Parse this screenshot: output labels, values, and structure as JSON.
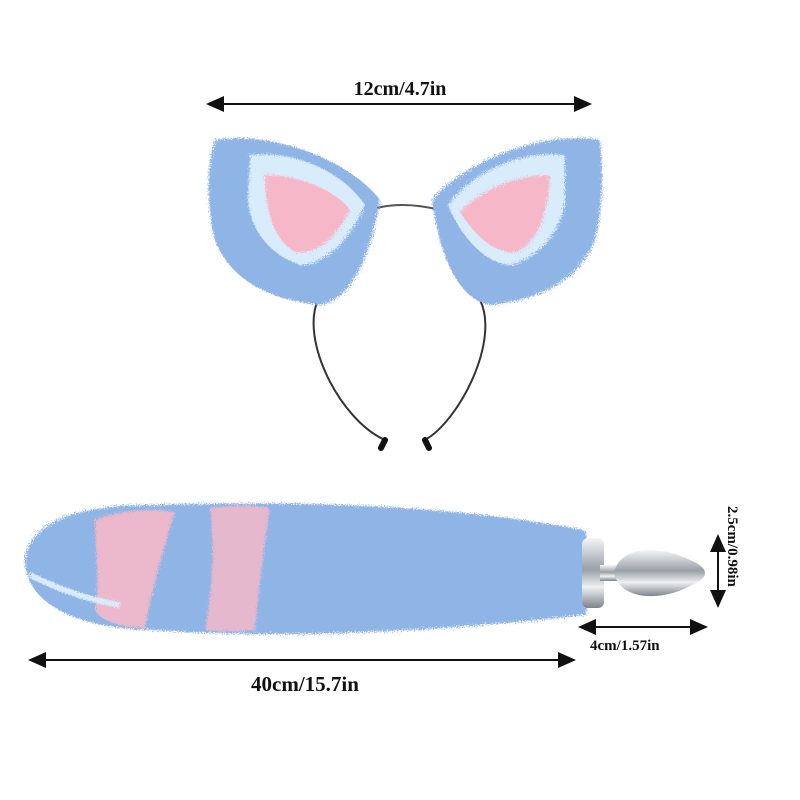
{
  "dimensions": {
    "ears_width": "12cm/4.7in",
    "tail_length": "40cm/15.7in",
    "plug_length": "4cm/1.57in",
    "plug_diameter": "2.5cm/0.98in"
  },
  "colors": {
    "fur_blue": "#8fb4e6",
    "fur_light": "#d8ecfb",
    "fur_pink": "#f6b8c8",
    "metal": "#c8ccd2",
    "arrow": "#111111"
  }
}
